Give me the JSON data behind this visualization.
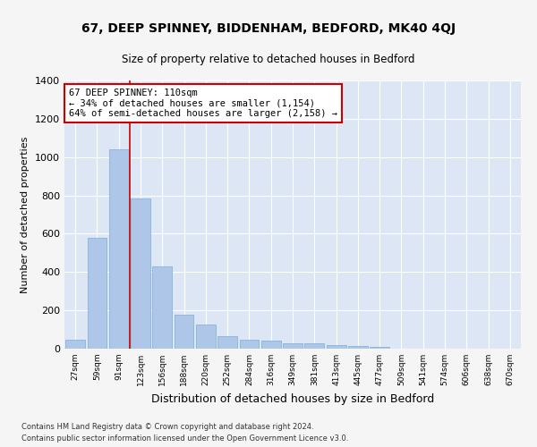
{
  "title": "67, DEEP SPINNEY, BIDDENHAM, BEDFORD, MK40 4QJ",
  "subtitle": "Size of property relative to detached houses in Bedford",
  "xlabel": "Distribution of detached houses by size in Bedford",
  "ylabel": "Number of detached properties",
  "footer_line1": "Contains HM Land Registry data © Crown copyright and database right 2024.",
  "footer_line2": "Contains public sector information licensed under the Open Government Licence v3.0.",
  "bar_labels": [
    "27sqm",
    "59sqm",
    "91sqm",
    "123sqm",
    "156sqm",
    "188sqm",
    "220sqm",
    "252sqm",
    "284sqm",
    "316sqm",
    "349sqm",
    "381sqm",
    "413sqm",
    "445sqm",
    "477sqm",
    "509sqm",
    "541sqm",
    "574sqm",
    "606sqm",
    "638sqm",
    "670sqm"
  ],
  "bar_values": [
    47,
    578,
    1040,
    783,
    428,
    178,
    128,
    65,
    48,
    43,
    27,
    27,
    20,
    12,
    8,
    0,
    0,
    0,
    0,
    0,
    0
  ],
  "bar_color": "#aec6e8",
  "bar_edge_color": "#7aadd4",
  "background_color": "#dde6f5",
  "grid_color": "#ffffff",
  "annotation_text": "67 DEEP SPINNEY: 110sqm\n← 34% of detached houses are smaller (1,154)\n64% of semi-detached houses are larger (2,158) →",
  "annotation_box_color": "#cc0000",
  "vline_x_index": 2.5,
  "vline_color": "#cc0000",
  "ylim": [
    0,
    1400
  ],
  "yticks": [
    0,
    200,
    400,
    600,
    800,
    1000,
    1200,
    1400
  ],
  "fig_width": 6.0,
  "fig_height": 5.0,
  "fig_bg": "#f5f5f5"
}
